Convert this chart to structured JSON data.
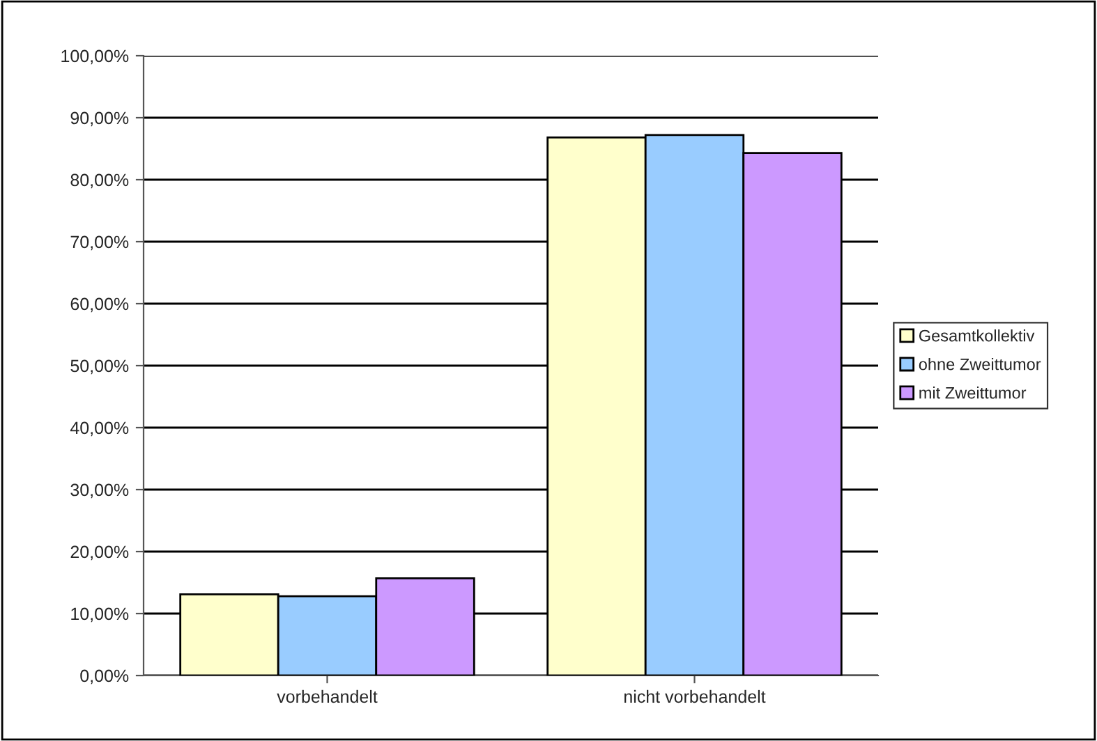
{
  "chart_data": {
    "type": "bar",
    "categories": [
      "vorbehandelt",
      "nicht vorbehandelt"
    ],
    "series": [
      {
        "name": "Gesamtkollektiv",
        "color": "#ffffcc",
        "values": [
          13.1,
          86.8
        ]
      },
      {
        "name": "ohne Zweittumor",
        "color": "#99ccff",
        "values": [
          12.8,
          87.2
        ]
      },
      {
        "name": "mit Zweittumor",
        "color": "#cc99ff",
        "values": [
          15.7,
          84.3
        ]
      }
    ],
    "ylim": [
      0,
      100
    ],
    "yticks": [
      {
        "value": 0,
        "label": "0,00%"
      },
      {
        "value": 10,
        "label": "10,00%"
      },
      {
        "value": 20,
        "label": "20,00%"
      },
      {
        "value": 30,
        "label": "30,00%"
      },
      {
        "value": 40,
        "label": "40,00%"
      },
      {
        "value": 50,
        "label": "50,00%"
      },
      {
        "value": 60,
        "label": "60,00%"
      },
      {
        "value": 70,
        "label": "70,00%"
      },
      {
        "value": 80,
        "label": "80,00%"
      },
      {
        "value": 90,
        "label": "90,00%"
      },
      {
        "value": 100,
        "label": "100,00%"
      }
    ],
    "grid": "y",
    "legend": "right"
  }
}
